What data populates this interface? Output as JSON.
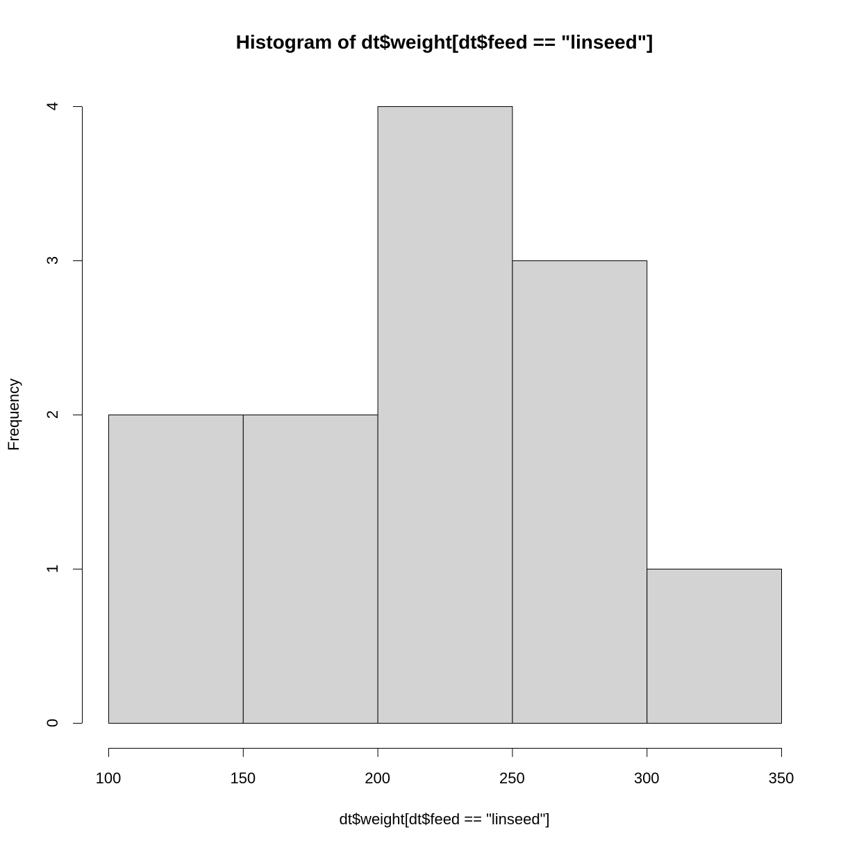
{
  "chart_data": {
    "type": "bar",
    "subtype": "histogram",
    "title": "Histogram of dt$weight[dt$feed == \"linseed\"]",
    "xlabel": "dt$weight[dt$feed == \"linseed\"]",
    "ylabel": "Frequency",
    "bins": [
      {
        "from": 100,
        "to": 150,
        "count": 2
      },
      {
        "from": 150,
        "to": 200,
        "count": 2
      },
      {
        "from": 200,
        "to": 250,
        "count": 4
      },
      {
        "from": 250,
        "to": 300,
        "count": 3
      },
      {
        "from": 300,
        "to": 350,
        "count": 1
      }
    ],
    "xlim": [
      100,
      350
    ],
    "ylim": [
      0,
      4
    ],
    "x_ticks": [
      "100",
      "150",
      "200",
      "250",
      "300",
      "350"
    ],
    "y_ticks": [
      "0",
      "1",
      "2",
      "3",
      "4"
    ],
    "bar_fill": "#d3d3d3",
    "bar_stroke": "#000000",
    "grid": false,
    "legend": "none"
  }
}
